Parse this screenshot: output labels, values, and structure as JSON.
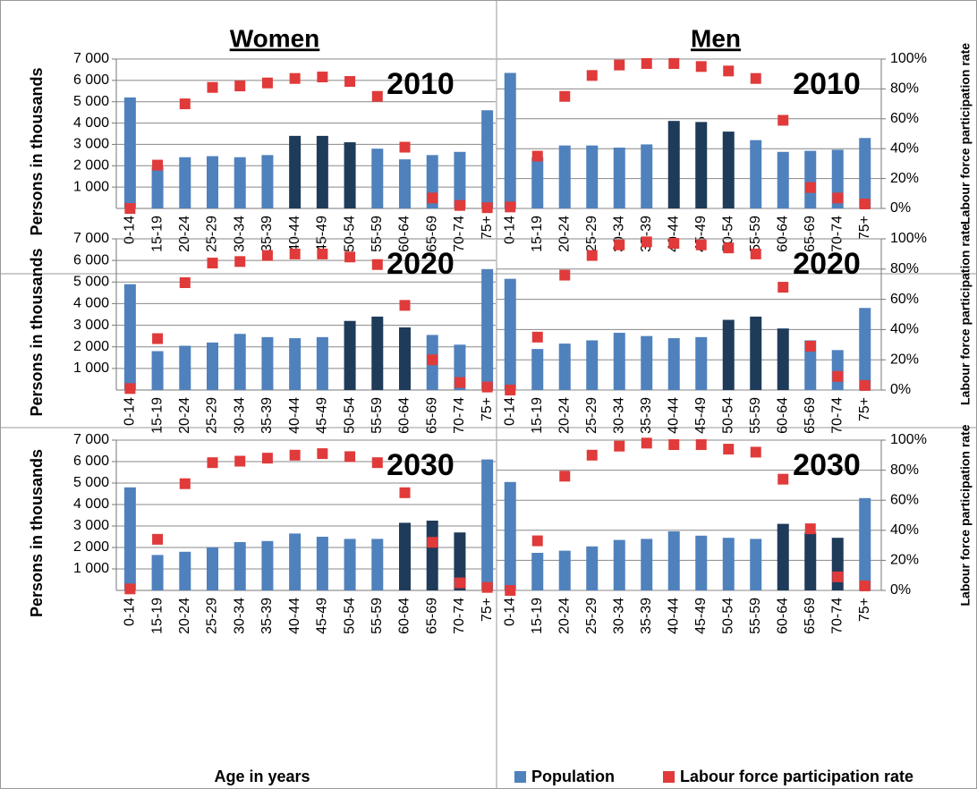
{
  "chart_data": [
    {
      "type": "bar",
      "title": "Women",
      "annotation": "2010",
      "ylabel": "Persons in thousands",
      "categories": [
        "0-14",
        "15-19",
        "20-24",
        "25-29",
        "30-34",
        "35-39",
        "40-44",
        "45-49",
        "50-54",
        "55-59",
        "60-64",
        "65-69",
        "70-74",
        "75+"
      ],
      "series": [
        {
          "name": "Population",
          "color": "#4f81bd",
          "bar_colors": [
            "#4f81bd",
            "#4f81bd",
            "#4f81bd",
            "#4f81bd",
            "#4f81bd",
            "#4f81bd",
            "#1f3b5a",
            "#1f3b5a",
            "#1f3b5a",
            "#4f81bd",
            "#4f81bd",
            "#4f81bd",
            "#4f81bd",
            "#4f81bd"
          ],
          "values": [
            5200,
            1950,
            2400,
            2450,
            2400,
            2500,
            3400,
            3400,
            3100,
            2800,
            2300,
            2500,
            2650,
            4600
          ]
        },
        {
          "name": "Labour force participation rate",
          "color": "#e03a3a",
          "axis": "y2",
          "values": [
            0,
            29,
            70,
            81,
            82,
            84,
            87,
            88,
            85,
            75,
            41,
            7,
            2,
            0.5
          ]
        }
      ],
      "ylim": [
        0,
        7000
      ],
      "yticks": [
        {
          "value": 1000,
          "label": "1 000"
        },
        {
          "value": 2000,
          "label": "2 000"
        },
        {
          "value": 3000,
          "label": "3 000"
        },
        {
          "value": 4000,
          "label": "4 000"
        },
        {
          "value": 5000,
          "label": "5 000"
        },
        {
          "value": 6000,
          "label": "6 000"
        },
        {
          "value": 7000,
          "label": "7 000"
        }
      ],
      "y2lim": [
        0,
        100
      ],
      "grid": true
    },
    {
      "type": "bar",
      "title": "Men",
      "annotation": "2010",
      "y2label": "Labour force participation rate",
      "categories": [
        "0-14",
        "15-19",
        "20-24",
        "25-29",
        "30-34",
        "35-39",
        "40-44",
        "45-49",
        "50-54",
        "55-59",
        "60-64",
        "65-69",
        "70-74",
        "75+"
      ],
      "series": [
        {
          "name": "Population",
          "color": "#4f81bd",
          "bar_colors": [
            "#4f81bd",
            "#4f81bd",
            "#4f81bd",
            "#4f81bd",
            "#4f81bd",
            "#4f81bd",
            "#1f3b5a",
            "#1f3b5a",
            "#1f3b5a",
            "#4f81bd",
            "#4f81bd",
            "#4f81bd",
            "#4f81bd",
            "#4f81bd"
          ],
          "values": [
            6350,
            2400,
            2950,
            2950,
            2850,
            3000,
            4100,
            4050,
            3600,
            3200,
            2650,
            2700,
            2750,
            3300
          ]
        },
        {
          "name": "Labour force participation rate",
          "color": "#e03a3a",
          "axis": "y2",
          "values": [
            1,
            35,
            75,
            89,
            96,
            97,
            97,
            95,
            92,
            87,
            59,
            14,
            7,
            3
          ]
        }
      ],
      "ylim": [
        0,
        7000
      ],
      "y2lim": [
        0,
        100
      ],
      "y2ticks": [
        {
          "value": 0,
          "label": "0%"
        },
        {
          "value": 20,
          "label": "20%"
        },
        {
          "value": 40,
          "label": "40%"
        },
        {
          "value": 60,
          "label": "60%"
        },
        {
          "value": 80,
          "label": "80%"
        },
        {
          "value": 100,
          "label": "100%"
        }
      ],
      "grid": true
    },
    {
      "type": "bar",
      "annotation": "2020",
      "ylabel": "Persons in thousands",
      "categories": [
        "0-14",
        "15-19",
        "20-24",
        "25-29",
        "30-34",
        "35-39",
        "40-44",
        "45-49",
        "50-54",
        "55-59",
        "60-64",
        "65-69",
        "70-74",
        "75+"
      ],
      "series": [
        {
          "name": "Population",
          "color": "#4f81bd",
          "bar_colors": [
            "#4f81bd",
            "#4f81bd",
            "#4f81bd",
            "#4f81bd",
            "#4f81bd",
            "#4f81bd",
            "#4f81bd",
            "#4f81bd",
            "#1f3b5a",
            "#1f3b5a",
            "#1f3b5a",
            "#4f81bd",
            "#4f81bd",
            "#4f81bd"
          ],
          "values": [
            4900,
            1800,
            2050,
            2200,
            2600,
            2450,
            2400,
            2450,
            3200,
            3400,
            2900,
            2550,
            2100,
            5600
          ]
        },
        {
          "name": "Labour force participation rate",
          "color": "#e03a3a",
          "axis": "y2",
          "values": [
            1,
            34,
            71,
            84,
            85,
            89,
            90,
            90,
            88,
            83,
            56,
            20,
            5,
            2
          ]
        }
      ],
      "ylim": [
        0,
        7000
      ],
      "yticks": [
        {
          "value": 1000,
          "label": "1 000"
        },
        {
          "value": 2000,
          "label": "2 000"
        },
        {
          "value": 3000,
          "label": "3 000"
        },
        {
          "value": 4000,
          "label": "4 000"
        },
        {
          "value": 5000,
          "label": "5 000"
        },
        {
          "value": 6000,
          "label": "6 000"
        },
        {
          "value": 7000,
          "label": "7 000"
        }
      ],
      "y2lim": [
        0,
        100
      ],
      "grid": true
    },
    {
      "type": "bar",
      "annotation": "2020",
      "y2label": "Labour force participation rate",
      "categories": [
        "0-14",
        "15-19",
        "20-24",
        "25-29",
        "30-34",
        "35-39",
        "40-44",
        "45-49",
        "50-54",
        "55-59",
        "60-64",
        "65-69",
        "70-74",
        "75+"
      ],
      "series": [
        {
          "name": "Population",
          "color": "#4f81bd",
          "bar_colors": [
            "#4f81bd",
            "#4f81bd",
            "#4f81bd",
            "#4f81bd",
            "#4f81bd",
            "#4f81bd",
            "#4f81bd",
            "#4f81bd",
            "#1f3b5a",
            "#1f3b5a",
            "#1f3b5a",
            "#4f81bd",
            "#4f81bd",
            "#4f81bd"
          ],
          "values": [
            5150,
            1900,
            2150,
            2300,
            2650,
            2500,
            2400,
            2450,
            3250,
            3400,
            2850,
            2300,
            1850,
            3800
          ]
        },
        {
          "name": "Labour force participation rate",
          "color": "#e03a3a",
          "axis": "y2",
          "values": [
            0,
            35,
            76,
            89,
            96,
            98,
            97,
            96,
            94,
            90,
            68,
            29,
            9,
            3
          ]
        }
      ],
      "ylim": [
        0,
        7000
      ],
      "y2lim": [
        0,
        100
      ],
      "y2ticks": [
        {
          "value": 0,
          "label": "0%"
        },
        {
          "value": 20,
          "label": "20%"
        },
        {
          "value": 40,
          "label": "40%"
        },
        {
          "value": 60,
          "label": "60%"
        },
        {
          "value": 80,
          "label": "80%"
        },
        {
          "value": 100,
          "label": "100%"
        }
      ],
      "grid": true
    },
    {
      "type": "bar",
      "annotation": "2030",
      "ylabel": "Persons in thousands",
      "xlabel": "Age in years",
      "categories": [
        "0-14",
        "15-19",
        "20-24",
        "25-29",
        "30-34",
        "35-39",
        "40-44",
        "45-49",
        "50-54",
        "55-59",
        "60-64",
        "65-69",
        "70-74",
        "75+"
      ],
      "series": [
        {
          "name": "Population",
          "color": "#4f81bd",
          "bar_colors": [
            "#4f81bd",
            "#4f81bd",
            "#4f81bd",
            "#4f81bd",
            "#4f81bd",
            "#4f81bd",
            "#4f81bd",
            "#4f81bd",
            "#4f81bd",
            "#4f81bd",
            "#1f3b5a",
            "#1f3b5a",
            "#1f3b5a",
            "#4f81bd"
          ],
          "values": [
            4800,
            1650,
            1800,
            2000,
            2250,
            2300,
            2650,
            2500,
            2400,
            2400,
            3150,
            3250,
            2700,
            6100
          ]
        },
        {
          "name": "Labour force participation rate",
          "color": "#e03a3a",
          "axis": "y2",
          "values": [
            1,
            34,
            71,
            85,
            86,
            88,
            90,
            91,
            89,
            85,
            65,
            32,
            5,
            2
          ]
        }
      ],
      "ylim": [
        0,
        7000
      ],
      "yticks": [
        {
          "value": 1000,
          "label": "1 000"
        },
        {
          "value": 2000,
          "label": "2 000"
        },
        {
          "value": 3000,
          "label": "3 000"
        },
        {
          "value": 4000,
          "label": "4 000"
        },
        {
          "value": 5000,
          "label": "5 000"
        },
        {
          "value": 6000,
          "label": "6 000"
        },
        {
          "value": 7000,
          "label": "7 000"
        }
      ],
      "y2lim": [
        0,
        100
      ],
      "grid": true
    },
    {
      "type": "bar",
      "annotation": "2030",
      "y2label": "Labour force participation rate",
      "legend": "bottom",
      "categories": [
        "0-14",
        "15-19",
        "20-24",
        "25-29",
        "30-34",
        "35-39",
        "40-44",
        "45-49",
        "50-54",
        "55-59",
        "60-64",
        "65-69",
        "70-74",
        "75+"
      ],
      "series": [
        {
          "name": "Population",
          "color": "#4f81bd",
          "bar_colors": [
            "#4f81bd",
            "#4f81bd",
            "#4f81bd",
            "#4f81bd",
            "#4f81bd",
            "#4f81bd",
            "#4f81bd",
            "#4f81bd",
            "#4f81bd",
            "#4f81bd",
            "#1f3b5a",
            "#1f3b5a",
            "#1f3b5a",
            "#4f81bd"
          ],
          "values": [
            5050,
            1750,
            1850,
            2050,
            2350,
            2400,
            2750,
            2550,
            2450,
            2400,
            3100,
            2700,
            2450,
            4300
          ]
        },
        {
          "name": "Labour force participation rate",
          "color": "#e03a3a",
          "axis": "y2",
          "values": [
            0,
            33,
            76,
            90,
            96,
            98,
            97,
            97,
            94,
            92,
            74,
            41,
            9,
            3
          ]
        }
      ],
      "ylim": [
        0,
        7000
      ],
      "y2lim": [
        0,
        100
      ],
      "y2ticks": [
        {
          "value": 0,
          "label": "0%"
        },
        {
          "value": 20,
          "label": "20%"
        },
        {
          "value": 40,
          "label": "40%"
        },
        {
          "value": 60,
          "label": "60%"
        },
        {
          "value": 80,
          "label": "80%"
        },
        {
          "value": 100,
          "label": "100%"
        }
      ],
      "grid": true
    }
  ]
}
